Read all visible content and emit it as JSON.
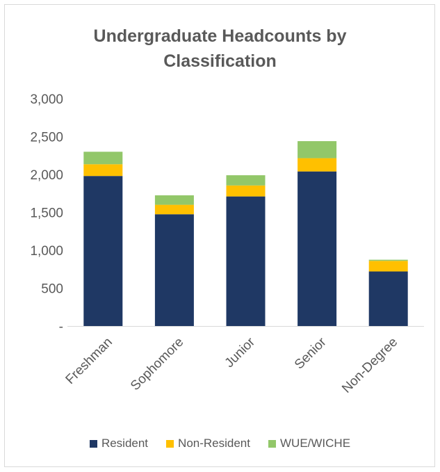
{
  "chart_data": {
    "type": "bar",
    "stacked": true,
    "title": "Undergraduate Headcounts by Classification",
    "categories": [
      "Freshman",
      "Sophomore",
      "Junior",
      "Senior",
      "Non-Degree"
    ],
    "series": [
      {
        "name": "Resident",
        "color": "#1f3864",
        "values": [
          1980,
          1475,
          1710,
          2040,
          720
        ]
      },
      {
        "name": "Non-Resident",
        "color": "#ffc000",
        "values": [
          155,
          125,
          145,
          175,
          140
        ]
      },
      {
        "name": "WUE/WICHE",
        "color": "#92c769",
        "values": [
          165,
          125,
          135,
          225,
          15
        ]
      }
    ],
    "ylim": [
      0,
      3000
    ],
    "yticks": [
      {
        "value": 0,
        "label": "-"
      },
      {
        "value": 500,
        "label": "500"
      },
      {
        "value": 1000,
        "label": "1,000"
      },
      {
        "value": 1500,
        "label": "1,500"
      },
      {
        "value": 2000,
        "label": "2,000"
      },
      {
        "value": 2500,
        "label": "2,500"
      },
      {
        "value": 3000,
        "label": "3,000"
      }
    ],
    "grid": false,
    "legend": "bottom"
  }
}
